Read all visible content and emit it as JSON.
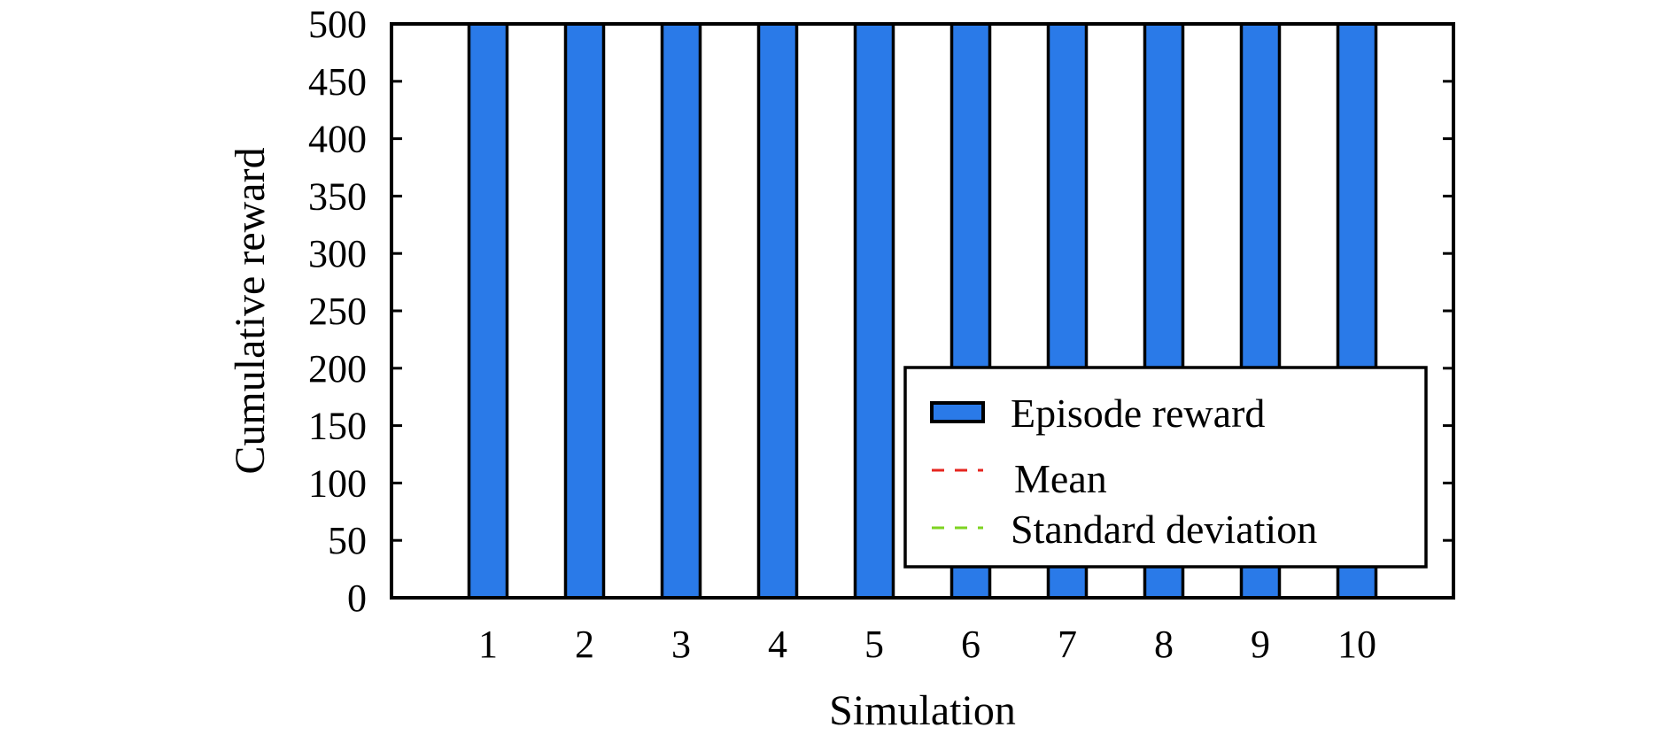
{
  "chart_data": {
    "type": "bar",
    "title": "",
    "xlabel": "Simulation",
    "ylabel": "Cumulative reward",
    "categories": [
      "1",
      "2",
      "3",
      "4",
      "5",
      "6",
      "7",
      "8",
      "9",
      "10"
    ],
    "series": [
      {
        "name": "Episode reward",
        "color": "#2a7ae8",
        "values": [
          500,
          500,
          500,
          500,
          500,
          500,
          500,
          500,
          500,
          500
        ]
      }
    ],
    "lines": [
      {
        "name": "Mean",
        "value": 500,
        "color": "#e6261f",
        "style": "dashed"
      },
      {
        "name": "Standard deviation",
        "value": 500,
        "color": "#7ed321",
        "style": "dashed"
      }
    ],
    "ylim": [
      0,
      500
    ],
    "yticks": [
      "0",
      "50",
      "100",
      "150",
      "200",
      "250",
      "300",
      "350",
      "400",
      "450",
      "500"
    ],
    "grid": false,
    "legend_position": "bottom-right"
  }
}
